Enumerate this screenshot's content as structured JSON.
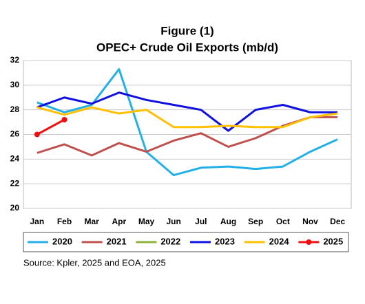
{
  "chart_data": {
    "type": "line",
    "title": "Figure (1)",
    "subtitle": "OPEC+ Crude Oil Exports (mb/d)",
    "categories": [
      "Jan",
      "Feb",
      "Mar",
      "Apr",
      "May",
      "Jun",
      "Jul",
      "Aug",
      "Sep",
      "Oct",
      "Nov",
      "Dec"
    ],
    "series": [
      {
        "name": "2020",
        "color": "#22b0e6",
        "values": [
          28.6,
          27.8,
          28.4,
          31.3,
          24.6,
          22.7,
          23.3,
          23.4,
          23.2,
          23.4,
          24.6,
          25.6
        ]
      },
      {
        "name": "2021",
        "color": "#c0504d",
        "values": [
          24.5,
          25.2,
          24.3,
          25.3,
          24.6,
          25.5,
          26.1,
          25.0,
          25.7,
          26.7,
          27.4,
          27.4
        ]
      },
      {
        "name": "2022",
        "color": "#8db33a",
        "values": [
          null,
          null,
          null,
          null,
          null,
          null,
          null,
          null,
          null,
          null,
          null,
          null
        ]
      },
      {
        "name": "2023",
        "color": "#1010e0",
        "values": [
          28.2,
          29.0,
          28.5,
          29.4,
          28.8,
          28.4,
          28.0,
          26.3,
          28.0,
          28.4,
          27.8,
          27.8
        ]
      },
      {
        "name": "2024",
        "color": "#ffc000",
        "values": [
          28.2,
          27.6,
          28.2,
          27.7,
          28.0,
          26.6,
          26.6,
          26.7,
          26.6,
          26.6,
          27.4,
          27.7
        ]
      },
      {
        "name": "2025",
        "color": "#ee1111",
        "markers": true,
        "values": [
          26.0,
          27.2,
          null,
          null,
          null,
          null,
          null,
          null,
          null,
          null,
          null,
          null
        ]
      }
    ],
    "ylim": [
      20,
      32
    ],
    "yticks": [
      20,
      22,
      24,
      26,
      28,
      30,
      32
    ],
    "grid": true,
    "source": "Source: Kpler, 2025 and  EOA, 2025"
  }
}
